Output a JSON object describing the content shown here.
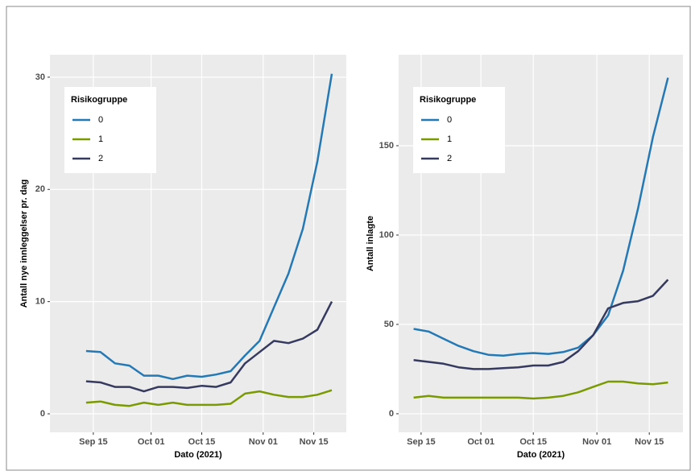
{
  "chart_data": [
    {
      "type": "line",
      "xlabel": "Dato (2021)",
      "ylabel": "Antall nye innleggelser pr. dag",
      "legend_title": "Risikogruppe",
      "legend": "top-left",
      "grid": true,
      "x": [
        "2021-09-13",
        "2021-09-17",
        "2021-09-21",
        "2021-09-25",
        "2021-09-29",
        "2021-10-03",
        "2021-10-07",
        "2021-10-11",
        "2021-10-15",
        "2021-10-19",
        "2021-10-23",
        "2021-10-27",
        "2021-10-31",
        "2021-11-04",
        "2021-11-08",
        "2021-11-12",
        "2021-11-16",
        "2021-11-20"
      ],
      "xlim": [
        "2021-09-03",
        "2021-11-24"
      ],
      "xticks": [
        {
          "value": "2021-09-15",
          "label": "Sep 15"
        },
        {
          "value": "2021-10-01",
          "label": "Oct 01"
        },
        {
          "value": "2021-10-15",
          "label": "Oct 15"
        },
        {
          "value": "2021-11-01",
          "label": "Nov 01"
        },
        {
          "value": "2021-11-15",
          "label": "Nov 15"
        }
      ],
      "ylim": [
        -1.65,
        32
      ],
      "yticks": [
        0,
        10,
        20,
        30
      ],
      "series": [
        {
          "name": "0",
          "color": "#2479b5",
          "values": [
            5.6,
            5.5,
            4.5,
            4.3,
            3.4,
            3.4,
            3.1,
            3.4,
            3.3,
            3.5,
            3.8,
            5.2,
            6.5,
            9.5,
            12.5,
            16.5,
            22.5,
            30.3
          ]
        },
        {
          "name": "1",
          "color": "#7a9a01",
          "values": [
            1.0,
            1.1,
            0.8,
            0.7,
            1.0,
            0.8,
            1.0,
            0.8,
            0.8,
            0.8,
            0.9,
            1.8,
            2.0,
            1.7,
            1.5,
            1.5,
            1.7,
            2.1
          ]
        },
        {
          "name": "2",
          "color": "#353a5e",
          "values": [
            2.9,
            2.8,
            2.4,
            2.4,
            2.0,
            2.4,
            2.4,
            2.3,
            2.5,
            2.4,
            2.8,
            4.5,
            5.5,
            6.5,
            6.3,
            6.7,
            7.5,
            10.0
          ]
        }
      ]
    },
    {
      "type": "line",
      "xlabel": "Dato (2021)",
      "ylabel": "Antall inlagte",
      "legend_title": "Risikogruppe",
      "legend": "top-left",
      "grid": true,
      "x": [
        "2021-09-13",
        "2021-09-17",
        "2021-09-21",
        "2021-09-25",
        "2021-09-29",
        "2021-10-03",
        "2021-10-07",
        "2021-10-11",
        "2021-10-15",
        "2021-10-19",
        "2021-10-23",
        "2021-10-27",
        "2021-10-31",
        "2021-11-04",
        "2021-11-08",
        "2021-11-12",
        "2021-11-16",
        "2021-11-20"
      ],
      "xlim": [
        "2021-09-09",
        "2021-11-24"
      ],
      "xticks": [
        {
          "value": "2021-09-15",
          "label": "Sep 15"
        },
        {
          "value": "2021-10-01",
          "label": "Oct 01"
        },
        {
          "value": "2021-10-15",
          "label": "Oct 15"
        },
        {
          "value": "2021-11-01",
          "label": "Nov 01"
        },
        {
          "value": "2021-11-15",
          "label": "Nov 15"
        }
      ],
      "ylim": [
        -10.4,
        200.9
      ],
      "yticks": [
        0,
        50,
        100,
        150
      ],
      "series": [
        {
          "name": "0",
          "color": "#2479b5",
          "values": [
            47.5,
            46,
            42,
            38,
            35,
            33,
            32.5,
            33.5,
            34,
            33.5,
            34.5,
            37,
            44,
            55,
            80,
            115,
            155,
            188
          ]
        },
        {
          "name": "1",
          "color": "#7a9a01",
          "values": [
            9,
            10,
            9,
            9,
            9,
            9,
            9,
            9,
            8.5,
            9,
            10,
            12,
            15,
            18,
            18,
            17,
            16.5,
            17.5
          ]
        },
        {
          "name": "2",
          "color": "#353a5e",
          "values": [
            30,
            29,
            28,
            26,
            25,
            25,
            25.5,
            26,
            27,
            27,
            29,
            35,
            44,
            59,
            62,
            63,
            66,
            75
          ]
        }
      ]
    }
  ]
}
